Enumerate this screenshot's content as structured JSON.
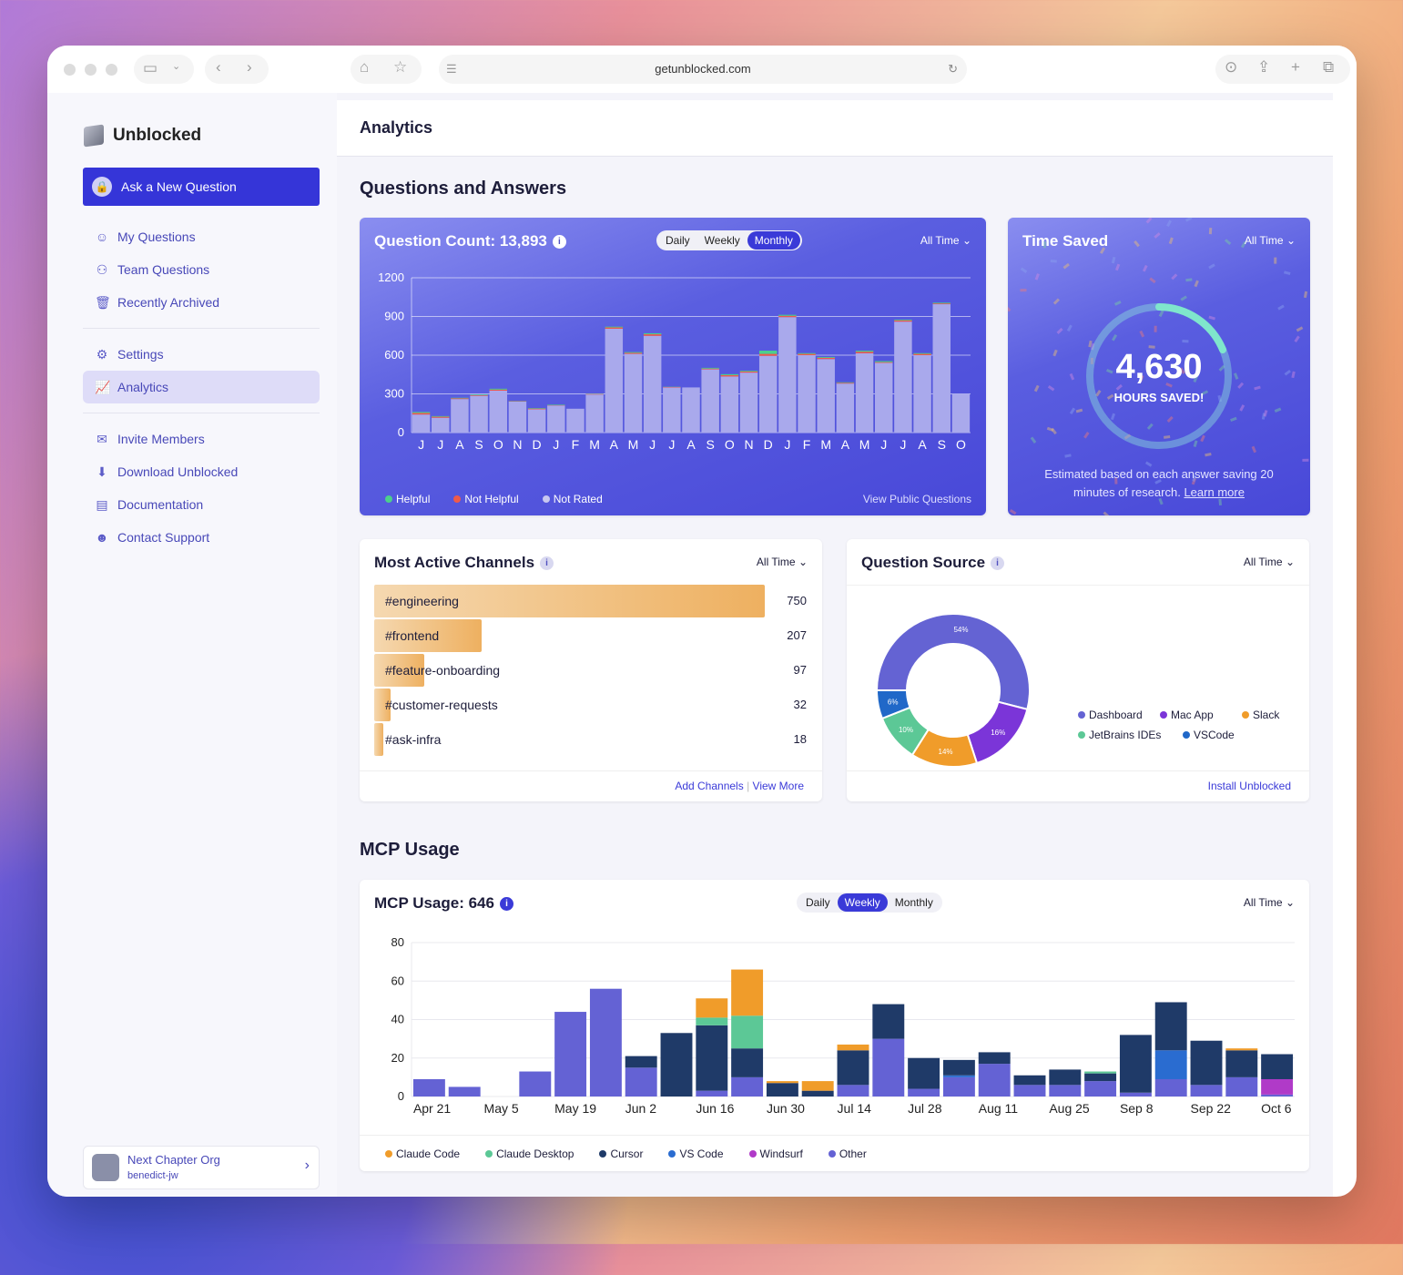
{
  "browser": {
    "url": "getunblocked.com"
  },
  "sidebar": {
    "brand": "Unblocked",
    "ask_label": "Ask a New Question",
    "items": [
      {
        "label": "My Questions",
        "icon": "people-question-icon"
      },
      {
        "label": "Team Questions",
        "icon": "team-icon"
      },
      {
        "label": "Recently Archived",
        "icon": "trash-icon"
      },
      {
        "label": "Settings",
        "icon": "gear-icon"
      },
      {
        "label": "Analytics",
        "icon": "chart-icon"
      },
      {
        "label": "Invite Members",
        "icon": "mail-icon"
      },
      {
        "label": "Download Unblocked",
        "icon": "download-icon"
      },
      {
        "label": "Documentation",
        "icon": "doc-icon"
      },
      {
        "label": "Contact Support",
        "icon": "support-icon"
      }
    ],
    "org": {
      "name": "Next Chapter Org",
      "user": "benedict-jw"
    }
  },
  "header": {
    "title": "Analytics"
  },
  "qa": {
    "section_title": "Questions and Answers",
    "question_count": {
      "title": "Question Count: 13,893",
      "tabs": [
        "Daily",
        "Weekly",
        "Monthly"
      ],
      "active_tab": "Monthly",
      "range": "All Time",
      "view_public": "View Public Questions"
    },
    "time_saved": {
      "title": "Time Saved",
      "range": "All Time",
      "value": "4,630",
      "label": "HOURS SAVED!",
      "note": "Estimated based on each answer saving 20 minutes of research.",
      "learn_more": "Learn more"
    },
    "channels": {
      "title": "Most Active Channels",
      "range": "All Time",
      "items": [
        {
          "name": "#engineering",
          "value": 750
        },
        {
          "name": "#frontend",
          "value": 207
        },
        {
          "name": "#feature-onboarding",
          "value": 97
        },
        {
          "name": "#customer-requests",
          "value": 32
        },
        {
          "name": "#ask-infra",
          "value": 18
        }
      ],
      "add": "Add Channels",
      "sep": "|",
      "more": "View More"
    },
    "source": {
      "title": "Question Source",
      "range": "All Time",
      "install": "Install Unblocked"
    }
  },
  "mcp": {
    "section_title": "MCP Usage",
    "title": "MCP Usage: 646",
    "tabs": [
      "Daily",
      "Weekly",
      "Monthly"
    ],
    "active_tab": "Weekly",
    "range": "All Time"
  },
  "chart_data": [
    {
      "type": "bar",
      "stacked": true,
      "ylim": [
        0,
        1200
      ],
      "yticks": [
        0,
        300,
        600,
        900,
        1200
      ],
      "grid": true,
      "legend": "bottom-left",
      "categories": [
        "J",
        "J",
        "A",
        "S",
        "O",
        "N",
        "D",
        "J",
        "F",
        "M",
        "A",
        "M",
        "J",
        "J",
        "A",
        "S",
        "O",
        "N",
        "D",
        "J",
        "F",
        "M",
        "A",
        "M",
        "J",
        "J",
        "A",
        "S",
        "O"
      ],
      "series": [
        {
          "name": "Not Rated",
          "color": "#a9a9ec",
          "values": [
            140,
            115,
            260,
            285,
            325,
            240,
            180,
            210,
            185,
            295,
            805,
            610,
            750,
            350,
            350,
            490,
            435,
            465,
            595,
            895,
            600,
            570,
            380,
            615,
            540,
            860,
            600,
            995,
            300
          ]
        },
        {
          "name": "Not Helpful",
          "color": "#ef5a4a",
          "values": [
            12,
            8,
            6,
            5,
            8,
            3,
            6,
            3,
            0,
            4,
            10,
            8,
            12,
            4,
            0,
            6,
            10,
            8,
            15,
            10,
            10,
            10,
            6,
            12,
            6,
            10,
            10,
            6,
            0
          ]
        },
        {
          "name": "Helpful",
          "color": "#4ccf8c",
          "values": [
            8,
            5,
            4,
            5,
            7,
            2,
            4,
            4,
            0,
            2,
            6,
            6,
            8,
            2,
            0,
            6,
            8,
            6,
            25,
            8,
            6,
            6,
            4,
            8,
            8,
            6,
            6,
            6,
            0
          ]
        }
      ]
    },
    {
      "type": "pie",
      "donut": true,
      "slices": [
        {
          "name": "Dashboard",
          "value": 54,
          "label": "54%",
          "color": "#6463d3"
        },
        {
          "name": "Mac App",
          "value": 16,
          "label": "16%",
          "color": "#7b35d8"
        },
        {
          "name": "Slack",
          "value": 14,
          "label": "14%",
          "color": "#f09c2a"
        },
        {
          "name": "JetBrains IDEs",
          "value": 10,
          "label": "10%",
          "color": "#5cc896"
        },
        {
          "name": "VSCode",
          "value": 6,
          "label": "6%",
          "color": "#2068c8"
        }
      ]
    },
    {
      "type": "bar",
      "stacked": true,
      "ylim": [
        0,
        80
      ],
      "yticks": [
        0,
        20,
        40,
        60,
        80
      ],
      "grid": true,
      "legend": "bottom-left",
      "categories": [
        "Apr 21",
        "",
        "May 5",
        "",
        "May 19",
        "",
        "Jun 2",
        "",
        "Jun 16",
        "",
        "Jun 30",
        "",
        "Jul 14",
        "",
        "Jul 28",
        "",
        "Aug 11",
        "",
        "Aug 25",
        "",
        "Sep 8",
        "",
        "Sep 22",
        "",
        "Oct 6"
      ],
      "series": [
        {
          "name": "Other",
          "color": "#6462d4",
          "values": [
            9,
            5,
            0,
            13,
            44,
            56,
            15,
            0,
            3,
            10,
            0,
            0,
            6,
            30,
            4,
            10,
            17,
            6,
            6,
            8,
            2,
            9,
            6,
            10,
            1
          ]
        },
        {
          "name": "Windsurf",
          "color": "#b03ac8",
          "values": [
            0,
            0,
            0,
            0,
            0,
            0,
            0,
            0,
            0,
            0,
            0,
            0,
            0,
            0,
            0,
            0,
            0,
            0,
            0,
            0,
            0,
            0,
            0,
            0,
            8
          ]
        },
        {
          "name": "VS Code",
          "color": "#2a6cd0",
          "values": [
            0,
            0,
            0,
            0,
            0,
            0,
            0,
            0,
            0,
            0,
            0,
            0,
            0,
            0,
            0,
            1,
            0,
            0,
            0,
            0,
            0,
            15,
            0,
            0,
            0
          ]
        },
        {
          "name": "Cursor",
          "color": "#1f3a68",
          "values": [
            0,
            0,
            0,
            0,
            0,
            0,
            6,
            33,
            34,
            15,
            7,
            3,
            18,
            18,
            16,
            8,
            6,
            5,
            8,
            4,
            30,
            25,
            23,
            14,
            13
          ]
        },
        {
          "name": "Claude Desktop",
          "color": "#5cc896",
          "values": [
            0,
            0,
            0,
            0,
            0,
            0,
            0,
            0,
            4,
            17,
            0,
            0,
            0,
            0,
            0,
            0,
            0,
            0,
            0,
            1,
            0,
            0,
            0,
            0,
            0
          ]
        },
        {
          "name": "Claude Code",
          "color": "#f09c2a",
          "values": [
            0,
            0,
            0,
            0,
            0,
            0,
            0,
            0,
            10,
            24,
            1,
            5,
            3,
            0,
            0,
            0,
            0,
            0,
            0,
            0,
            0,
            0,
            0,
            1,
            0
          ]
        }
      ]
    }
  ]
}
